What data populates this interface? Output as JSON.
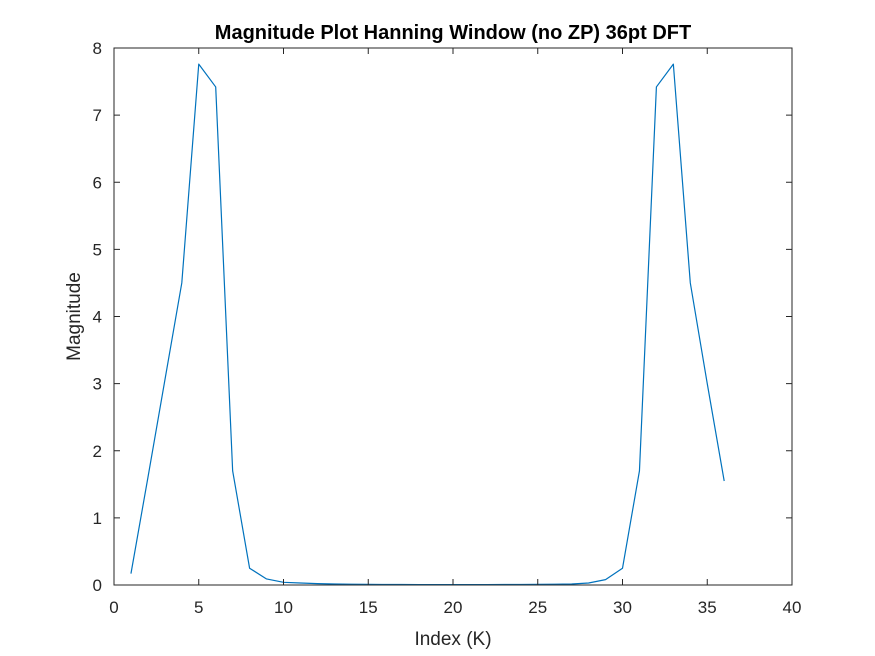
{
  "chart_data": {
    "type": "line",
    "title": "Magnitude Plot Hanning Window (no ZP) 36pt DFT",
    "xlabel": "Index (K)",
    "ylabel": "Magnitude",
    "xlim": [
      0,
      40
    ],
    "ylim": [
      0,
      8
    ],
    "xticks": [
      0,
      5,
      10,
      15,
      20,
      25,
      30,
      35,
      40
    ],
    "yticks": [
      0,
      1,
      2,
      3,
      4,
      5,
      6,
      7,
      8
    ],
    "xtick_labels": [
      "0",
      "5",
      "10",
      "15",
      "20",
      "25",
      "30",
      "35",
      "40"
    ],
    "ytick_labels": [
      "0",
      "1",
      "2",
      "3",
      "4",
      "5",
      "6",
      "7",
      "8"
    ],
    "grid": false,
    "line_color": "#0072BD",
    "series": [
      {
        "x": [
          1,
          2,
          3,
          4,
          5,
          6,
          7,
          8,
          9,
          10,
          11,
          12,
          13,
          14,
          15,
          16,
          17,
          18,
          19,
          20,
          21,
          22,
          23,
          24,
          25,
          26,
          27,
          28,
          29,
          30,
          31,
          32,
          33,
          34,
          35,
          36
        ],
        "values": [
          0.17,
          1.6,
          3.05,
          4.5,
          7.76,
          7.42,
          1.7,
          0.25,
          0.09,
          0.04,
          0.03,
          0.02,
          0.015,
          0.012,
          0.01,
          0.008,
          0.007,
          0.006,
          0.006,
          0.005,
          0.006,
          0.006,
          0.007,
          0.008,
          0.01,
          0.012,
          0.015,
          0.03,
          0.08,
          0.25,
          1.7,
          7.42,
          7.76,
          4.5,
          3.0,
          1.55
        ]
      }
    ]
  }
}
